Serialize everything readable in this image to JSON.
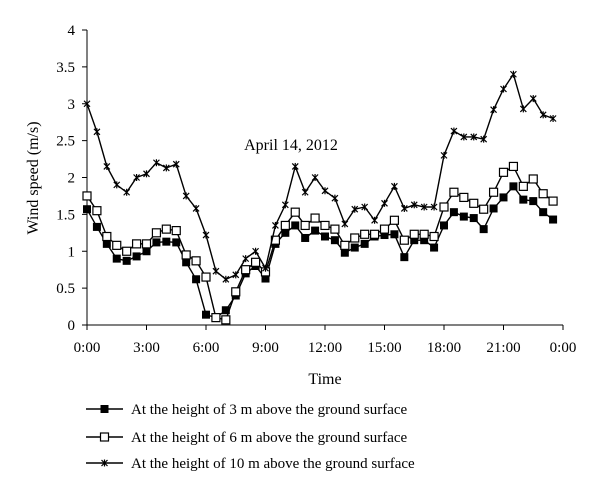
{
  "chart_data": {
    "type": "line",
    "annotation": "April 14, 2012",
    "xlabel": "Time",
    "ylabel": "Wind speed (m/s)",
    "ylim": [
      0,
      4
    ],
    "y_ticks": [
      "0",
      "0.5",
      "1",
      "1.5",
      "2",
      "2.5",
      "3",
      "3.5",
      "4"
    ],
    "xlim": [
      0,
      24
    ],
    "x_ticks": [
      "0:00",
      "3:00",
      "6:00",
      "9:00",
      "12:00",
      "15:00",
      "18:00",
      "21:00",
      "0:00"
    ],
    "grid": false,
    "legend_position": "bottom",
    "x": [
      0,
      0.5,
      1,
      1.5,
      2,
      2.5,
      3,
      3.5,
      4,
      4.5,
      5,
      5.5,
      6,
      6.5,
      7,
      7.5,
      8,
      8.5,
      9,
      9.5,
      10,
      10.5,
      11,
      11.5,
      12,
      12.5,
      13,
      13.5,
      14,
      14.5,
      15,
      15.5,
      16,
      16.5,
      17,
      17.5,
      18,
      18.5,
      19,
      19.5,
      20,
      20.5,
      21,
      21.5,
      22,
      22.5,
      23,
      23.5
    ],
    "series": [
      {
        "name": "At the height of 3 m above the ground surface",
        "marker": "filled-square",
        "values": [
          1.57,
          1.33,
          1.1,
          0.9,
          0.87,
          0.93,
          1.0,
          1.12,
          1.13,
          1.12,
          0.85,
          0.62,
          0.14,
          0.1,
          0.2,
          0.4,
          0.7,
          0.8,
          0.63,
          1.1,
          1.25,
          1.35,
          1.18,
          1.28,
          1.2,
          1.15,
          0.98,
          1.05,
          1.1,
          1.2,
          1.22,
          1.23,
          0.92,
          1.15,
          1.15,
          1.05,
          1.35,
          1.53,
          1.47,
          1.45,
          1.3,
          1.58,
          1.73,
          1.88,
          1.7,
          1.68,
          1.53,
          1.43
        ]
      },
      {
        "name": "At the height of 6 m above the ground surface",
        "marker": "open-square",
        "values": [
          1.75,
          1.55,
          1.2,
          1.08,
          1.0,
          1.1,
          1.1,
          1.25,
          1.3,
          1.28,
          0.95,
          0.87,
          0.65,
          0.1,
          0.07,
          0.45,
          0.75,
          0.85,
          0.72,
          1.15,
          1.35,
          1.53,
          1.35,
          1.45,
          1.35,
          1.3,
          1.08,
          1.18,
          1.23,
          1.23,
          1.3,
          1.42,
          1.15,
          1.23,
          1.23,
          1.2,
          1.6,
          1.8,
          1.73,
          1.65,
          1.57,
          1.8,
          2.07,
          2.15,
          1.88,
          1.98,
          1.78,
          1.68
        ]
      },
      {
        "name": "At the height of 10 m above the ground surface",
        "marker": "star",
        "values": [
          3.0,
          2.62,
          2.15,
          1.9,
          1.8,
          2.0,
          2.05,
          2.2,
          2.13,
          2.18,
          1.75,
          1.58,
          1.22,
          0.73,
          0.62,
          0.68,
          0.9,
          1.0,
          0.77,
          1.35,
          1.63,
          2.15,
          1.8,
          2.0,
          1.82,
          1.72,
          1.37,
          1.57,
          1.6,
          1.42,
          1.65,
          1.88,
          1.58,
          1.63,
          1.6,
          1.6,
          2.3,
          2.63,
          2.55,
          2.55,
          2.52,
          2.92,
          3.2,
          3.4,
          2.93,
          3.07,
          2.85,
          2.8
        ]
      }
    ]
  }
}
